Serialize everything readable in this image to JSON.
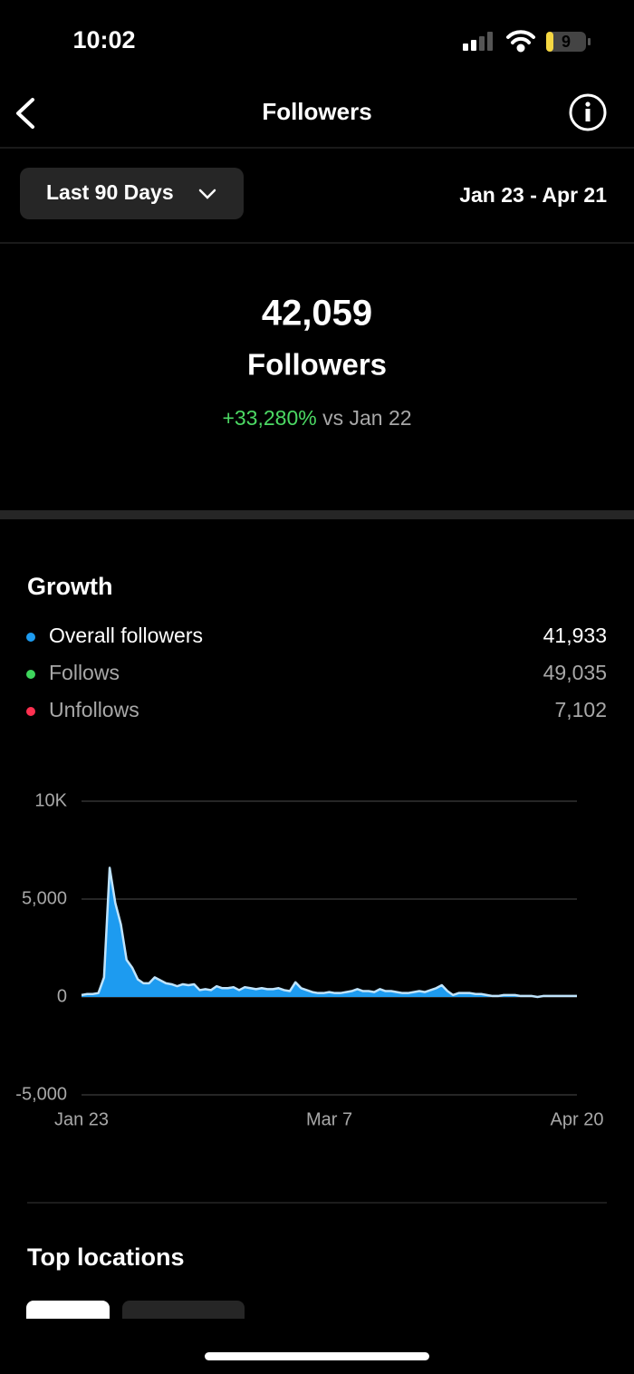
{
  "status_bar": {
    "time": "10:02",
    "battery": "9"
  },
  "header": {
    "title": "Followers"
  },
  "filter": {
    "range": "Last 90 Days",
    "dates": "Jan 23 - Apr 21"
  },
  "summary": {
    "count": "42,059",
    "label": "Followers",
    "change": "+33,280%",
    "compare": "vs Jan 22"
  },
  "growth": {
    "title": "Growth",
    "legend": [
      {
        "name": "Overall followers",
        "value": "41,933",
        "color": "#1d9bf0"
      },
      {
        "name": "Follows",
        "value": "49,035",
        "color": "#3ed65c"
      },
      {
        "name": "Unfollows",
        "value": "7,102",
        "color": "#ff3050"
      }
    ]
  },
  "chart_data": {
    "type": "area",
    "color": "#1d9bf0",
    "line_color": "#bfe3fb",
    "grid": true,
    "categories": [
      "Jan 23",
      null,
      null,
      null,
      null,
      null,
      null,
      null,
      null,
      null,
      null,
      null,
      null,
      null,
      null,
      null,
      null,
      null,
      null,
      null,
      null,
      null,
      null,
      null,
      null,
      null,
      null,
      null,
      null,
      null,
      null,
      null,
      null,
      null,
      null,
      null,
      null,
      null,
      null,
      null,
      null,
      null,
      null,
      null,
      "Mar 7",
      null,
      null,
      null,
      null,
      null,
      null,
      null,
      null,
      null,
      null,
      null,
      null,
      null,
      null,
      null,
      null,
      null,
      null,
      null,
      null,
      null,
      null,
      null,
      null,
      null,
      null,
      null,
      null,
      null,
      null,
      null,
      null,
      null,
      null,
      null,
      null,
      null,
      null,
      null,
      null,
      null,
      null,
      null,
      "Apr 20"
    ],
    "values": [
      100,
      150,
      150,
      200,
      1000,
      6600,
      4800,
      3700,
      1900,
      1500,
      900,
      700,
      700,
      1000,
      850,
      700,
      650,
      550,
      650,
      600,
      650,
      350,
      400,
      350,
      550,
      450,
      450,
      500,
      350,
      500,
      450,
      400,
      450,
      400,
      400,
      450,
      350,
      300,
      750,
      450,
      350,
      250,
      200,
      200,
      250,
      200,
      200,
      250,
      300,
      400,
      300,
      300,
      250,
      400,
      300,
      300,
      250,
      200,
      200,
      250,
      300,
      250,
      350,
      450,
      600,
      300,
      100,
      200,
      200,
      200,
      150,
      150,
      100,
      50,
      50,
      100,
      100,
      100,
      50,
      50,
      50,
      0,
      50,
      50,
      50,
      50,
      50,
      50,
      50
    ],
    "ylim": [
      -5000,
      10000
    ],
    "yticks": [
      {
        "value": 10000,
        "label": "10K"
      },
      {
        "value": 5000,
        "label": "5,000"
      },
      0,
      {
        "value": -5000,
        "label": "-5,000"
      }
    ]
  },
  "top_locations": {
    "title": "Top locations"
  }
}
